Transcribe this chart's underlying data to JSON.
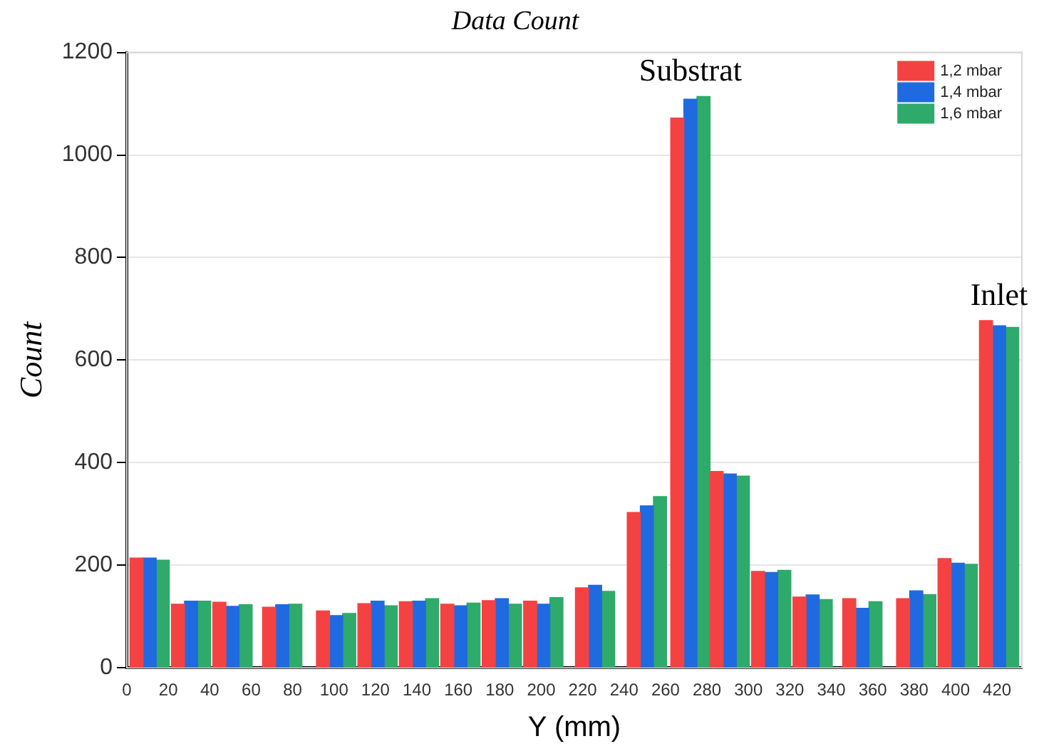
{
  "chart_data": {
    "type": "bar",
    "title": "Data Count",
    "xlabel": "Y (mm)",
    "ylabel": "Count",
    "x": [
      11,
      31,
      51,
      75,
      101,
      121,
      141,
      161,
      181,
      201,
      226,
      251,
      272,
      291,
      311,
      331,
      355,
      381,
      401,
      421
    ],
    "series": [
      {
        "name": "1,2 mbar",
        "color": "#f44242",
        "values": [
          214,
          124,
          128,
          118,
          111,
          125,
          129,
          124,
          131,
          130,
          156,
          303,
          1072,
          383,
          188,
          138,
          135,
          135,
          213,
          677
        ]
      },
      {
        "name": "1,4 mbar",
        "color": "#1f6ae0",
        "values": [
          214,
          130,
          120,
          123,
          102,
          130,
          130,
          121,
          135,
          124,
          161,
          316,
          1109,
          378,
          186,
          142,
          116,
          150,
          204,
          667
        ]
      },
      {
        "name": "1,6 mbar",
        "color": "#2eaa6a",
        "values": [
          210,
          130,
          123,
          124,
          106,
          121,
          135,
          126,
          124,
          137,
          149,
          334,
          1114,
          374,
          190,
          133,
          129,
          143,
          202,
          664
        ]
      }
    ],
    "xlim": [
      0,
      432
    ],
    "xticks": [
      0,
      20,
      40,
      60,
      80,
      100,
      120,
      140,
      160,
      180,
      200,
      220,
      240,
      260,
      280,
      300,
      320,
      340,
      360,
      380,
      400,
      420
    ],
    "ylim": [
      0,
      1200
    ],
    "yticks": [
      0,
      200,
      400,
      600,
      800,
      1000,
      1200
    ],
    "grid": "y",
    "legend": "top right",
    "annotations": [
      {
        "text": "Substrat",
        "x": 272,
        "y": 1114
      },
      {
        "text": "Inlet",
        "x": 421,
        "y": 677
      }
    ]
  }
}
